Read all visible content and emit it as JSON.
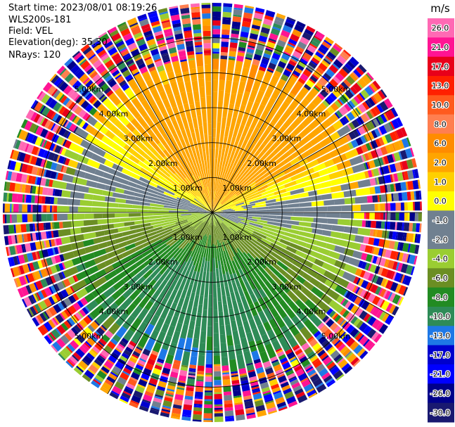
{
  "info": {
    "start_time": "Start time: 2023/08/01 08:19:26",
    "instrument": "WLS200s-181",
    "field": "Field: VEL",
    "elevation": "Elevation(deg): 35.30",
    "nrays": "NRays: 120"
  },
  "chart_data": {
    "type": "heatmap",
    "projection": "polar-ppi",
    "field": "VEL",
    "units": "m/s",
    "n_rays": 120,
    "max_range_km": 6.0,
    "range_rings_km": [
      1.0,
      2.0,
      3.0,
      4.0,
      5.0
    ],
    "ring_labels": [
      "1.00km",
      "2.00km",
      "3.00km",
      "4.00km",
      "5.00km"
    ],
    "spoke_angles_deg": [
      0,
      30,
      60,
      90,
      120,
      150,
      180,
      210,
      240,
      270,
      300,
      330
    ],
    "velocity_pattern": {
      "approx_max_toward_north_ms": 9,
      "approx_max_toward_south_ms": -10,
      "clear_range_km": 4.3,
      "noisy_range_km": 6.0
    },
    "colorbar": {
      "label": "m/s",
      "tick_labels": [
        "26.0",
        "21.0",
        "17.0",
        "13.0",
        "10.0",
        "8.0",
        "6.0",
        "2.0",
        "1.0",
        "0.0",
        "-1.0",
        "-2.0",
        "-4.0",
        "-6.0",
        "-8.0",
        "-10.0",
        "-13.0",
        "-17.0",
        "-21.0",
        "-26.0",
        "-30.0"
      ],
      "boundaries": [
        30,
        26,
        21,
        17,
        13,
        10,
        8,
        6,
        2,
        1,
        0,
        -1,
        -2,
        -4,
        -6,
        -8,
        -10,
        -13,
        -17,
        -21,
        -26,
        -30
      ],
      "colors": [
        "#ff69b4",
        "#ff1493",
        "#e8001a",
        "#ff2000",
        "#ff5a1e",
        "#ff7f50",
        "#ff8c00",
        "#ffa500",
        "#ffd000",
        "#ffff00",
        "#708090",
        "#708090",
        "#9acd32",
        "#6b8e23",
        "#228b22",
        "#2e8b57",
        "#1e78e6",
        "#0000cd",
        "#0000ff",
        "#00008b",
        "#191970"
      ]
    }
  }
}
